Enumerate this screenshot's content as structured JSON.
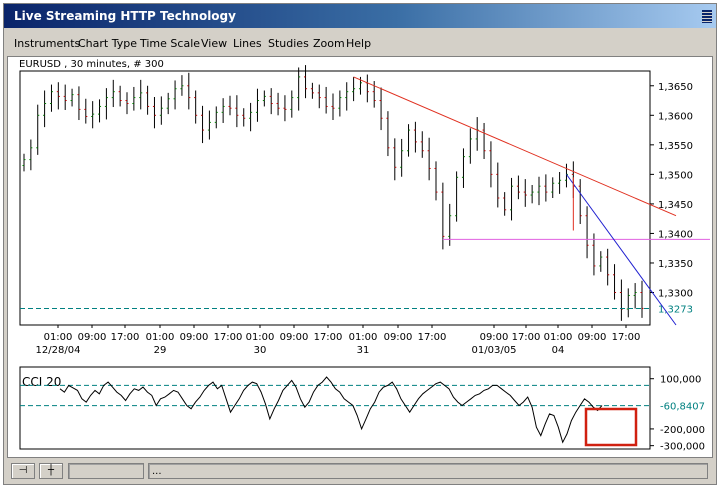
{
  "window": {
    "title": "Live Streaming HTTP Technology"
  },
  "menu": [
    "Instruments",
    "Chart Type",
    "Time Scale",
    "View",
    "Lines",
    "Studies",
    "Zoom",
    "Help"
  ],
  "price_panel": {
    "label": "EURUSD , 30 minutes, # 300",
    "y_ticks": [
      "1,3650",
      "1,3600",
      "1,3550",
      "1,3500",
      "1,3450",
      "1,3400",
      "1,3350",
      "1,3300"
    ],
    "last_price": "1,3273",
    "x_time_ticks": [
      "01:00",
      "09:00",
      "17:00",
      "01:00",
      "09:00",
      "17:00",
      "01:00",
      "09:00",
      "17:00",
      "01:00",
      "09:00",
      "17:00",
      "09:00",
      "17:00",
      "01:00",
      "09:00",
      "17:00"
    ],
    "x_date_ticks": [
      "12/28/04",
      "29",
      "30",
      "31",
      "01/03/05",
      "04"
    ]
  },
  "cci_panel": {
    "label": "CCI 20",
    "y_ticks": [
      "100,000",
      "-200,000",
      "-300,000"
    ],
    "current": "-60,8407"
  },
  "status": {
    "text": "..."
  },
  "colors": {
    "trend_red": "#e03020",
    "trend_blue": "#2020d0",
    "support_magenta": "#e060e0",
    "dashed_teal": "#008080",
    "highlight_box": "#d02010"
  },
  "chart_data": {
    "type": "ohlc",
    "instrument": "EURUSD",
    "timeframe": "30 minutes",
    "bars": 300,
    "y_range": [
      1.3245,
      1.3675
    ],
    "close_series": [
      1.3525,
      1.3545,
      1.36,
      1.362,
      1.364,
      1.3632,
      1.3625,
      1.3635,
      1.361,
      1.3598,
      1.3602,
      1.3615,
      1.363,
      1.364,
      1.3625,
      1.362,
      1.363,
      1.3638,
      1.3615,
      1.36,
      1.3612,
      1.3628,
      1.3645,
      1.365,
      1.363,
      1.36,
      1.3575,
      1.3588,
      1.3605,
      1.3615,
      1.3612,
      1.36,
      1.3595,
      1.3605,
      1.3625,
      1.3632,
      1.362,
      1.3612,
      1.361,
      1.363,
      1.3665,
      1.3645,
      1.3638,
      1.363,
      1.3615,
      1.3612,
      1.363,
      1.364,
      1.3645,
      1.3655,
      1.364,
      1.3625,
      1.3595,
      1.3545,
      1.3512,
      1.354,
      1.3575,
      1.3555,
      1.354,
      1.351,
      1.347,
      1.3395,
      1.343,
      1.3495,
      1.353,
      1.356,
      1.3575,
      1.354,
      1.35,
      1.346,
      1.344,
      1.348,
      1.347,
      1.3465,
      1.347,
      1.348,
      1.347,
      1.3485,
      1.349,
      1.35,
      1.348,
      1.343,
      1.338,
      1.3345,
      1.336,
      1.333,
      1.33,
      1.3272,
      1.3295,
      1.33,
      1.3273
    ],
    "lines": {
      "red_trend": {
        "from": 1.3665,
        "to": 1.343
      },
      "support": 1.339,
      "last_price_dashed": 1.3273
    },
    "cci": {
      "range": [
        -320,
        170
      ],
      "dashed_levels": [
        60,
        -60.8407
      ],
      "values": [
        40,
        20,
        60,
        45,
        30,
        -20,
        -40,
        0,
        30,
        10,
        60,
        80,
        50,
        20,
        0,
        -30,
        10,
        40,
        30,
        50,
        20,
        0,
        -60,
        -20,
        -10,
        10,
        30,
        20,
        -20,
        -60,
        -80,
        -40,
        -10,
        30,
        60,
        80,
        40,
        60,
        -20,
        -100,
        -60,
        -20,
        30,
        60,
        80,
        70,
        20,
        -50,
        -140,
        -80,
        -30,
        30,
        60,
        90,
        50,
        -20,
        -70,
        -40,
        20,
        60,
        80,
        110,
        80,
        40,
        20,
        -20,
        -40,
        -60,
        -120,
        -200,
        -140,
        -80,
        -40,
        20,
        50,
        60,
        80,
        40,
        -20,
        -60,
        -100,
        -60,
        -20,
        10,
        30,
        50,
        70,
        80,
        60,
        40,
        -10,
        -40,
        -60,
        -40,
        -20,
        0,
        10,
        30,
        40,
        60,
        60,
        40,
        20,
        0,
        -30,
        -60,
        -40,
        -10,
        -70,
        -190,
        -240,
        -170,
        -110,
        -120,
        -190,
        -280,
        -230,
        -150,
        -100,
        -60,
        -20,
        -40,
        -70,
        -90,
        -60
      ]
    }
  }
}
